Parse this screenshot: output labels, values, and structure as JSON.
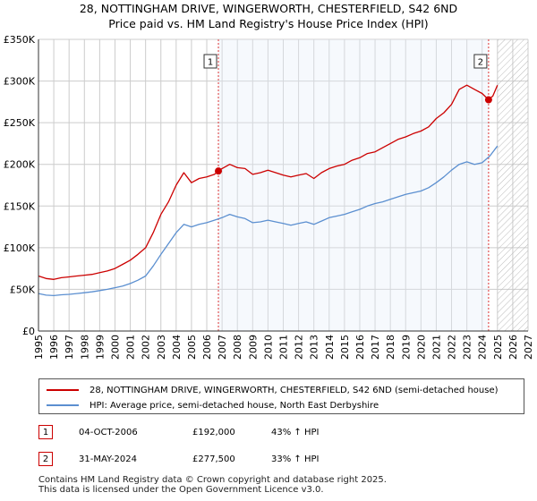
{
  "title_line1": "28, NOTTINGHAM DRIVE, WINGERWORTH, CHESTERFIELD, S42 6ND",
  "title_line2": "Price paid vs. HM Land Registry's House Price Index (HPI)",
  "legend": {
    "property_label": "28, NOTTINGHAM DRIVE, WINGERWORTH, CHESTERFIELD, S42 6ND (semi-detached house)",
    "hpi_label": "HPI: Average price, semi-detached house, North East Derbyshire"
  },
  "transactions": [
    {
      "marker": "1",
      "date": "04-OCT-2006",
      "price": "£192,000",
      "hpi_change": "43% ↑ HPI"
    },
    {
      "marker": "2",
      "date": "31-MAY-2024",
      "price": "£277,500",
      "hpi_change": "33% ↑ HPI"
    }
  ],
  "footer": {
    "line1": "Contains HM Land Registry data © Crown copyright and database right 2025.",
    "line2": "This data is licensed under the Open Government Licence v3.0."
  },
  "colors": {
    "property": "#cc0000",
    "hpi": "#5b8fd0",
    "grid": "#cccccc",
    "forecast_hatch": "#bbbbbb"
  },
  "chart_data": {
    "type": "line",
    "title": "28, NOTTINGHAM DRIVE, WINGERWORTH, CHESTERFIELD, S42 6ND — Price paid vs. HM Land Registry's House Price Index (HPI)",
    "xlabel": "",
    "ylabel": "",
    "xlim": [
      1995,
      2027
    ],
    "ylim": [
      0,
      350000
    ],
    "x_ticks": [
      1995,
      1996,
      1997,
      1998,
      1999,
      2000,
      2001,
      2002,
      2003,
      2004,
      2005,
      2006,
      2007,
      2008,
      2009,
      2010,
      2011,
      2012,
      2013,
      2014,
      2015,
      2016,
      2017,
      2018,
      2019,
      2020,
      2021,
      2022,
      2023,
      2024,
      2025,
      2026,
      2027
    ],
    "y_ticks": [
      0,
      50000,
      100000,
      150000,
      200000,
      250000,
      300000,
      350000
    ],
    "y_tick_labels": [
      "£0",
      "£50K",
      "£100K",
      "£150K",
      "£200K",
      "£250K",
      "£300K",
      "£350K"
    ],
    "grid": true,
    "forecast_from": 2025.0,
    "legend_position": "below",
    "series": [
      {
        "name": "28, NOTTINGHAM DRIVE, WINGERWORTH, CHESTERFIELD, S42 6ND (semi-detached house)",
        "x": [
          1995,
          1995.5,
          1996,
          1996.5,
          1997,
          1997.5,
          1998,
          1998.5,
          1999,
          1999.5,
          2000,
          2000.5,
          2001,
          2001.5,
          2002,
          2002.5,
          2003,
          2003.5,
          2004,
          2004.5,
          2005,
          2005.5,
          2006,
          2006.5,
          2006.76,
          2007,
          2007.5,
          2008,
          2008.5,
          2009,
          2009.5,
          2010,
          2010.5,
          2011,
          2011.5,
          2012,
          2012.5,
          2013,
          2013.5,
          2014,
          2014.5,
          2015,
          2015.5,
          2016,
          2016.5,
          2017,
          2017.5,
          2018,
          2018.5,
          2019,
          2019.5,
          2020,
          2020.5,
          2021,
          2021.5,
          2022,
          2022.5,
          2023,
          2023.5,
          2024,
          2024.42,
          2024.7,
          2025
        ],
        "values": [
          66000,
          63000,
          62000,
          64000,
          65000,
          66000,
          67000,
          68000,
          70000,
          72000,
          75000,
          80000,
          85000,
          92000,
          100000,
          118000,
          140000,
          155000,
          175000,
          190000,
          178000,
          183000,
          185000,
          188000,
          192000,
          195000,
          200000,
          196000,
          195000,
          188000,
          190000,
          193000,
          190000,
          187000,
          185000,
          187000,
          189000,
          183000,
          190000,
          195000,
          198000,
          200000,
          205000,
          208000,
          213000,
          215000,
          220000,
          225000,
          230000,
          233000,
          237000,
          240000,
          245000,
          255000,
          262000,
          272000,
          290000,
          295000,
          290000,
          285000,
          277500,
          282000,
          295000
        ]
      },
      {
        "name": "HPI: Average price, semi-detached house, North East Derbyshire",
        "x": [
          1995,
          1995.5,
          1996,
          1996.5,
          1997,
          1997.5,
          1998,
          1998.5,
          1999,
          1999.5,
          2000,
          2000.5,
          2001,
          2001.5,
          2002,
          2002.5,
          2003,
          2003.5,
          2004,
          2004.5,
          2005,
          2005.5,
          2006,
          2006.5,
          2007,
          2007.5,
          2008,
          2008.5,
          2009,
          2009.5,
          2010,
          2010.5,
          2011,
          2011.5,
          2012,
          2012.5,
          2013,
          2013.5,
          2014,
          2014.5,
          2015,
          2015.5,
          2016,
          2016.5,
          2017,
          2017.5,
          2018,
          2018.5,
          2019,
          2019.5,
          2020,
          2020.5,
          2021,
          2021.5,
          2022,
          2022.5,
          2023,
          2023.5,
          2024,
          2024.5,
          2025
        ],
        "values": [
          45000,
          43000,
          42500,
          43500,
          44000,
          45000,
          46000,
          47000,
          48500,
          50000,
          52000,
          54000,
          57000,
          61000,
          66000,
          78000,
          92000,
          105000,
          118000,
          128000,
          125000,
          128000,
          130000,
          133000,
          136000,
          140000,
          137000,
          135000,
          130000,
          131000,
          133000,
          131000,
          129000,
          127000,
          129000,
          131000,
          128000,
          132000,
          136000,
          138000,
          140000,
          143000,
          146000,
          150000,
          153000,
          155000,
          158000,
          161000,
          164000,
          166000,
          168000,
          172000,
          178000,
          185000,
          193000,
          200000,
          203000,
          200000,
          202000,
          210000,
          222000
        ]
      }
    ],
    "annotations": [
      {
        "label": "1",
        "x": 2006.76,
        "y": 192000
      },
      {
        "label": "2",
        "x": 2024.42,
        "y": 277500
      }
    ]
  }
}
